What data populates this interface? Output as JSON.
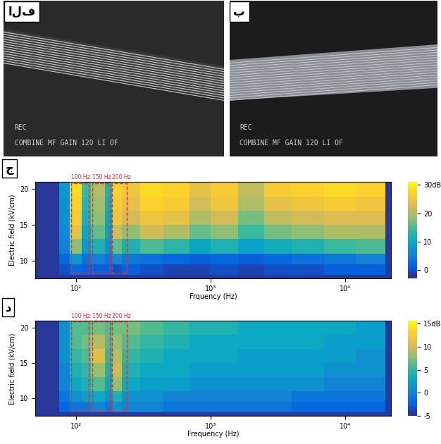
{
  "images": [
    {
      "panel_label": "الف",
      "overlay": [
        "REC",
        "COMBINE MF GAIN 120 LI OF"
      ]
    },
    {
      "panel_label": "ب",
      "overlay": [
        "REC",
        "COMBINE MF GAIN 120 LI OF"
      ]
    }
  ],
  "chart_data": [
    {
      "type": "heatmap",
      "panel_label": "ج",
      "x_label": "Frquency (Hz)",
      "y_label": "Electric field (kV/cm)",
      "log": "x",
      "xlim": [
        50,
        22000
      ],
      "xticks": [
        {
          "value": 100,
          "label": "10²"
        },
        {
          "value": 1000,
          "label": "10³"
        },
        {
          "value": 10000,
          "label": "10⁴"
        }
      ],
      "ylim": [
        7.5,
        21
      ],
      "yticks": [
        10,
        15,
        20
      ],
      "x_edges": [
        75,
        90,
        110,
        130,
        165,
        185,
        220,
        300,
        450,
        700,
        1000,
        1600,
        2500,
        4000,
        7000,
        12000,
        20000
      ],
      "y_edges": [
        8,
        9.5,
        11,
        13,
        15,
        17,
        19,
        21
      ],
      "cells": [
        [
          0,
          2,
          1,
          1,
          1,
          0,
          1,
          0,
          -1,
          -1,
          0,
          -1,
          0,
          0,
          1,
          1
        ],
        [
          2,
          8,
          3,
          5,
          3,
          6,
          4,
          3,
          2,
          1,
          2,
          1,
          2,
          3,
          4,
          5
        ],
        [
          5,
          18,
          8,
          12,
          7,
          16,
          12,
          15,
          13,
          10,
          12,
          9,
          11,
          12,
          14,
          15
        ],
        [
          6,
          24,
          10,
          16,
          9,
          22,
          18,
          22,
          20,
          16,
          18,
          14,
          17,
          18,
          20,
          20
        ],
        [
          7,
          26,
          12,
          18,
          10,
          25,
          22,
          25,
          24,
          20,
          22,
          17,
          21,
          22,
          23,
          23
        ],
        [
          7,
          27,
          13,
          19,
          11,
          26,
          24,
          27,
          26,
          22,
          25,
          20,
          24,
          25,
          26,
          25
        ],
        [
          8,
          28,
          14,
          20,
          12,
          27,
          25,
          28,
          27,
          24,
          26,
          21,
          26,
          27,
          28,
          27
        ]
      ],
      "colorbar": {
        "range": [
          -3,
          31
        ],
        "ticks": [
          0,
          10,
          20,
          {
            "value": 30,
            "label": "30dB"
          }
        ]
      },
      "highlights": [
        {
          "label": "100 Hz",
          "x": [
            92,
            125
          ],
          "y": [
            8.2,
            20.8
          ],
          "color": "#e03030"
        },
        {
          "label": "150 Hz",
          "x": [
            132,
            180
          ],
          "y": [
            8.2,
            20.8
          ],
          "color": "#e03030"
        },
        {
          "label": "200 Hz",
          "x": [
            185,
            240
          ],
          "y": [
            8.2,
            20.8
          ],
          "color": "#e03030"
        }
      ]
    },
    {
      "type": "heatmap",
      "panel_label": "د",
      "x_label": "Frequency (Hz)",
      "y_label": "Electric field (kV/cm)",
      "log": "x",
      "xlim": [
        50,
        22000
      ],
      "xticks": [
        {
          "value": 100,
          "label": "10²"
        },
        {
          "value": 1000,
          "label": "10³"
        },
        {
          "value": 10000,
          "label": "10⁴"
        }
      ],
      "ylim": [
        7.5,
        21
      ],
      "yticks": [
        10,
        15,
        20
      ],
      "x_edges": [
        75,
        90,
        110,
        130,
        165,
        185,
        220,
        300,
        450,
        700,
        1000,
        1600,
        2500,
        4000,
        7000,
        12000,
        20000
      ],
      "y_edges": [
        8,
        9.5,
        11,
        13,
        15,
        17,
        19,
        21
      ],
      "cells": [
        [
          -2,
          -1,
          -1,
          0,
          -1,
          1,
          0,
          0,
          -1,
          -1,
          -1,
          -1,
          -1,
          -2,
          -2,
          -2
        ],
        [
          -1,
          1,
          2,
          3,
          1,
          4,
          1,
          1,
          0,
          0,
          0,
          0,
          0,
          -1,
          -1,
          -1
        ],
        [
          0,
          3,
          4,
          6,
          3,
          8,
          3,
          2,
          2,
          1,
          1,
          1,
          1,
          1,
          0,
          0
        ],
        [
          0,
          4,
          5,
          8,
          4,
          10,
          4,
          3,
          3,
          2,
          2,
          2,
          2,
          2,
          1,
          1
        ],
        [
          1,
          5,
          6,
          11,
          5,
          9,
          5,
          4,
          3,
          3,
          3,
          2,
          2,
          2,
          2,
          1
        ],
        [
          1,
          6,
          7,
          9,
          6,
          8,
          6,
          5,
          4,
          3,
          3,
          3,
          3,
          3,
          2,
          2
        ],
        [
          1,
          6,
          6,
          7,
          6,
          7,
          7,
          6,
          5,
          4,
          4,
          3,
          3,
          3,
          3,
          2
        ]
      ],
      "colorbar": {
        "range": [
          -5,
          15.5
        ],
        "ticks": [
          -5,
          0,
          5,
          10,
          {
            "value": 15,
            "label": "15dB"
          }
        ]
      },
      "highlights": [
        {
          "label": "100 Hz",
          "x": [
            92,
            125
          ],
          "y": [
            8.2,
            20.9
          ],
          "color": "#e03030"
        },
        {
          "label": "150 Hz",
          "x": [
            132,
            180
          ],
          "y": [
            8.2,
            20.9
          ],
          "color": "#e03030"
        },
        {
          "label": "200 Hz",
          "x": [
            185,
            240
          ],
          "y": [
            8.2,
            20.9
          ],
          "color": "#e03030"
        }
      ]
    }
  ]
}
